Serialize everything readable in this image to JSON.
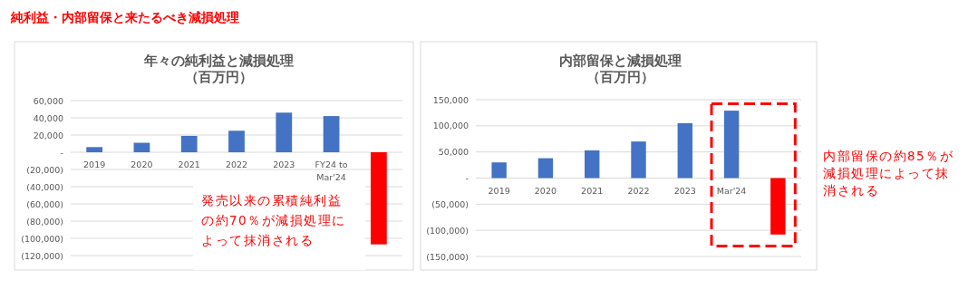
{
  "chart_data": [
    {
      "type": "other",
      "title": "純利益・内部留保と来たるべき減損処理"
    },
    {
      "type": "bar",
      "title": "年々の純利益と減損処理（百万円）",
      "categories": [
        "2019",
        "2020",
        "2021",
        "2022",
        "2023",
        "FY24 to\nMar'24",
        null
      ],
      "values": [
        6000,
        11000,
        19000,
        25000,
        46000,
        42000,
        -107000
      ],
      "colors": [
        "#4472c4",
        "#4472c4",
        "#4472c4",
        "#4472c4",
        "#4472c4",
        "#4472c4",
        "#ff0000"
      ],
      "ylim": [
        -120000,
        60000
      ],
      "yticks": [
        {
          "value": 60000,
          "label": "60,000"
        },
        {
          "value": 40000,
          "label": "40,000"
        },
        {
          "value": 20000,
          "label": "20,000"
        },
        {
          "value": 0,
          "label": "-"
        },
        {
          "value": -20000,
          "label": "(20,000)"
        },
        {
          "value": -40000,
          "label": "(40,000)"
        },
        {
          "value": -60000,
          "label": "(60,000)"
        },
        {
          "value": -80000,
          "label": "(80,000)"
        },
        {
          "value": -100000,
          "label": "(100,000)"
        },
        {
          "value": -120000,
          "label": "(120,000)"
        }
      ],
      "grid": "y",
      "annotations": [
        "発売以来の累積純利益の約70％が減損処理によって抹消される"
      ]
    },
    {
      "type": "bar",
      "title": "内部留保と減損処理（百万円）",
      "categories": [
        "2019",
        "2020",
        "2021",
        "2022",
        "2023",
        "Mar'24",
        null
      ],
      "values": [
        30000,
        38000,
        53000,
        70000,
        105000,
        129000,
        -108000
      ],
      "colors": [
        "#4472c4",
        "#4472c4",
        "#4472c4",
        "#4472c4",
        "#4472c4",
        "#4472c4",
        "#ff0000"
      ],
      "ylim": [
        -150000,
        150000
      ],
      "yticks": [
        {
          "value": 150000,
          "label": "150,000"
        },
        {
          "value": 100000,
          "label": "100,000"
        },
        {
          "value": 50000,
          "label": "50,000"
        },
        {
          "value": 0,
          "label": "-"
        },
        {
          "value": -50000,
          "label": "(50,000)"
        },
        {
          "value": -100000,
          "label": "(100,000)"
        },
        {
          "value": -150000,
          "label": "(150,000)"
        }
      ],
      "grid": "y",
      "annotations": [
        "内部留保の約85％が減損処理によって抹消される"
      ]
    }
  ]
}
